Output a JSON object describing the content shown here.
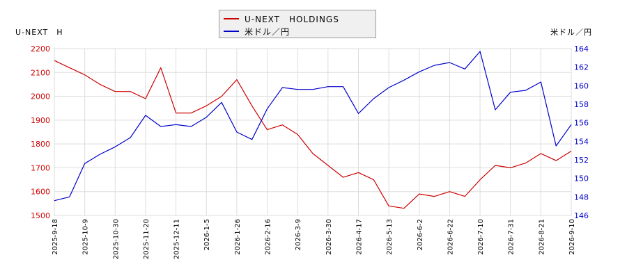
{
  "labels": {
    "left_axis_title": "U-NEXT　H",
    "right_axis_title": "米ドル／円"
  },
  "legend": [
    {
      "name": "U-NEXT　HOLDINGS",
      "color": "#cc0000"
    },
    {
      "name": "米ドル／円",
      "color": "#0000cc"
    }
  ],
  "chart_data": {
    "type": "line",
    "x_ticks": [
      "2025-9-18",
      "2025-10-9",
      "2025-10-30",
      "2025-11-20",
      "2025-12-11",
      "2026-1-5",
      "2026-1-26",
      "2026-2-16",
      "2026-3-9",
      "2026-3-30",
      "2026-4-17",
      "2026-5-13",
      "2026-6-2",
      "2026-6-22",
      "2026-7-10",
      "2026-7-31",
      "2026-8-21",
      "2026-9-10"
    ],
    "left_axis": {
      "ylim": [
        1500,
        2200
      ],
      "ticks": [
        1500,
        1600,
        1700,
        1800,
        1900,
        2000,
        2100,
        2200
      ]
    },
    "right_axis": {
      "ylim": [
        146,
        164
      ],
      "ticks": [
        146,
        148,
        150,
        152,
        154,
        156,
        158,
        160,
        162,
        164
      ]
    },
    "grid": true,
    "series": [
      {
        "name": "U-NEXT　HOLDINGS",
        "axis": "left",
        "color": "#cc0000",
        "x_index": [
          0,
          0.5,
          1,
          1.5,
          2,
          2.5,
          3,
          3.5,
          4,
          4.5,
          5,
          5.5,
          6,
          6.5,
          7,
          7.5,
          8,
          8.5,
          9,
          9.5,
          10,
          10.5,
          11,
          11.5,
          12,
          12.5,
          13,
          13.5,
          14,
          14.5,
          15,
          15.5,
          16,
          16.5,
          17
        ],
        "values": [
          2150,
          2120,
          2090,
          2050,
          2020,
          2020,
          1990,
          2120,
          1930,
          1930,
          1960,
          2000,
          2070,
          1960,
          1860,
          1880,
          1840,
          1760,
          1710,
          1660,
          1680,
          1650,
          1540,
          1530,
          1590,
          1580,
          1600,
          1580,
          1650,
          1710,
          1700,
          1720,
          1760,
          1730,
          1770
        ]
      },
      {
        "name": "米ドル／円",
        "axis": "right",
        "color": "#0000cc",
        "x_index": [
          0,
          0.5,
          1,
          1.5,
          2,
          2.5,
          3,
          3.5,
          4,
          4.5,
          5,
          5.5,
          6,
          6.5,
          7,
          7.5,
          8,
          8.5,
          9,
          9.5,
          10,
          10.5,
          11,
          11.5,
          12,
          12.5,
          13,
          13.5,
          14,
          14.5,
          15,
          15.5,
          16,
          16.5,
          17
        ],
        "values": [
          147.6,
          148.0,
          151.6,
          152.6,
          153.4,
          154.4,
          156.8,
          155.6,
          155.8,
          155.6,
          156.6,
          158.2,
          155.0,
          154.2,
          157.5,
          159.8,
          159.6,
          159.6,
          159.9,
          159.9,
          157.0,
          158.6,
          159.8,
          160.6,
          161.5,
          162.2,
          162.5,
          161.8,
          163.7,
          157.4,
          159.3,
          159.5,
          160.4,
          153.5,
          155.8
        ]
      }
    ]
  }
}
